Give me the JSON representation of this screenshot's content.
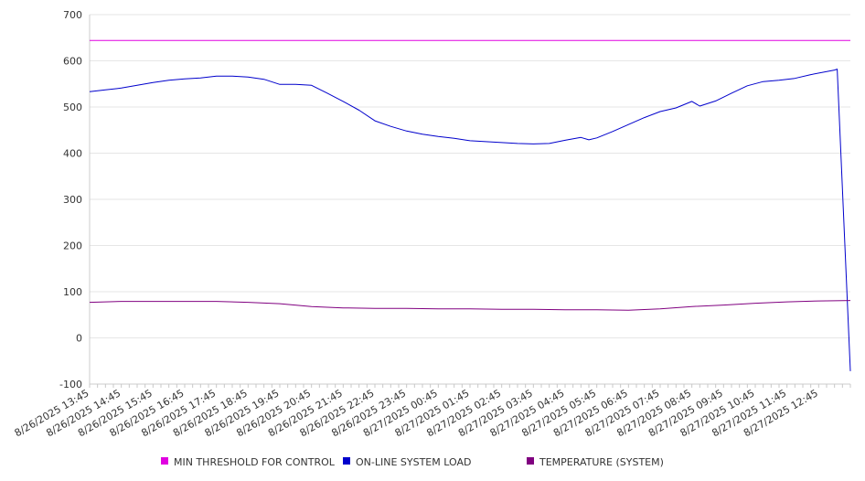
{
  "chart_data": {
    "type": "line",
    "title": "",
    "xlabel": "",
    "ylabel": "",
    "ylim": [
      -100,
      700
    ],
    "y_ticks": [
      "700",
      "600",
      "500",
      "400",
      "300",
      "200",
      "100",
      "0",
      "-100"
    ],
    "grid": "horizontal",
    "legend_position": "bottom",
    "x_tick_labels": [
      "8/26/2025 13:45",
      "8/26/2025 14:45",
      "8/26/2025 15:45",
      "8/26/2025 16:45",
      "8/26/2025 17:45",
      "8/26/2025 18:45",
      "8/26/2025 19:45",
      "8/26/2025 20:45",
      "8/26/2025 21:45",
      "8/26/2025 22:45",
      "8/26/2025 23:45",
      "8/27/2025 00:45",
      "8/27/2025 01:45",
      "8/27/2025 02:45",
      "8/27/2025 03:45",
      "8/27/2025 04:45",
      "8/27/2025 05:45",
      "8/27/2025 06:45",
      "8/27/2025 07:45",
      "8/27/2025 08:45",
      "8/27/2025 09:45",
      "8/27/2025 10:45",
      "8/27/2025 11:45",
      "8/27/2025 12:45"
    ],
    "x_range": [
      "8/26/2025 13:45",
      "8/27/2025 13:45"
    ],
    "series": [
      {
        "name": "MIN THRESHOLD FOR CONTROL",
        "color": "#e000e0",
        "points": [
          [
            "8/26/2025 13:45",
            644
          ],
          [
            "8/27/2025 13:45",
            644
          ]
        ]
      },
      {
        "name": "ON-LINE SYSTEM LOAD",
        "color": "#0000cc",
        "points": [
          [
            "8/26/2025 13:45",
            533
          ],
          [
            "8/26/2025 14:15",
            537
          ],
          [
            "8/26/2025 14:45",
            541
          ],
          [
            "8/26/2025 15:15",
            547
          ],
          [
            "8/26/2025 15:45",
            553
          ],
          [
            "8/26/2025 16:15",
            558
          ],
          [
            "8/26/2025 16:45",
            561
          ],
          [
            "8/26/2025 17:15",
            563
          ],
          [
            "8/26/2025 17:45",
            567
          ],
          [
            "8/26/2025 18:15",
            567
          ],
          [
            "8/26/2025 18:45",
            565
          ],
          [
            "8/26/2025 19:15",
            560
          ],
          [
            "8/26/2025 19:45",
            549
          ],
          [
            "8/26/2025 20:15",
            549
          ],
          [
            "8/26/2025 20:45",
            547
          ],
          [
            "8/26/2025 21:15",
            530
          ],
          [
            "8/26/2025 21:45",
            512
          ],
          [
            "8/26/2025 22:15",
            493
          ],
          [
            "8/26/2025 22:45",
            470
          ],
          [
            "8/26/2025 23:15",
            458
          ],
          [
            "8/26/2025 23:45",
            448
          ],
          [
            "8/27/2025 00:15",
            441
          ],
          [
            "8/27/2025 00:45",
            436
          ],
          [
            "8/27/2025 01:15",
            432
          ],
          [
            "8/27/2025 01:45",
            427
          ],
          [
            "8/27/2025 02:15",
            425
          ],
          [
            "8/27/2025 02:45",
            423
          ],
          [
            "8/27/2025 03:15",
            421
          ],
          [
            "8/27/2025 03:45",
            420
          ],
          [
            "8/27/2025 04:15",
            421
          ],
          [
            "8/27/2025 04:45",
            428
          ],
          [
            "8/27/2025 05:15",
            434
          ],
          [
            "8/27/2025 05:30",
            429
          ],
          [
            "8/27/2025 05:45",
            433
          ],
          [
            "8/27/2025 06:15",
            447
          ],
          [
            "8/27/2025 06:45",
            462
          ],
          [
            "8/27/2025 07:15",
            477
          ],
          [
            "8/27/2025 07:45",
            490
          ],
          [
            "8/27/2025 08:15",
            498
          ],
          [
            "8/27/2025 08:45",
            512
          ],
          [
            "8/27/2025 09:00",
            502
          ],
          [
            "8/27/2025 09:30",
            513
          ],
          [
            "8/27/2025 10:00",
            530
          ],
          [
            "8/27/2025 10:30",
            546
          ],
          [
            "8/27/2025 11:00",
            555
          ],
          [
            "8/27/2025 11:30",
            558
          ],
          [
            "8/27/2025 12:00",
            562
          ],
          [
            "8/27/2025 12:30",
            570
          ],
          [
            "8/27/2025 13:15",
            580
          ],
          [
            "8/27/2025 13:20",
            582
          ],
          [
            "8/27/2025 13:45",
            -72
          ]
        ]
      },
      {
        "name": "TEMPERATURE (SYSTEM)",
        "color": "#800080",
        "points": [
          [
            "8/26/2025 13:45",
            77
          ],
          [
            "8/26/2025 14:45",
            79
          ],
          [
            "8/26/2025 15:45",
            79
          ],
          [
            "8/26/2025 16:45",
            79
          ],
          [
            "8/26/2025 17:45",
            79
          ],
          [
            "8/26/2025 18:45",
            77
          ],
          [
            "8/26/2025 19:45",
            74
          ],
          [
            "8/26/2025 20:45",
            68
          ],
          [
            "8/26/2025 21:45",
            65
          ],
          [
            "8/26/2025 22:45",
            64
          ],
          [
            "8/26/2025 23:45",
            64
          ],
          [
            "8/27/2025 00:45",
            63
          ],
          [
            "8/27/2025 01:45",
            63
          ],
          [
            "8/27/2025 02:45",
            62
          ],
          [
            "8/27/2025 03:45",
            62
          ],
          [
            "8/27/2025 04:45",
            61
          ],
          [
            "8/27/2025 05:45",
            61
          ],
          [
            "8/27/2025 06:45",
            60
          ],
          [
            "8/27/2025 07:45",
            63
          ],
          [
            "8/27/2025 08:45",
            68
          ],
          [
            "8/27/2025 09:45",
            71
          ],
          [
            "8/27/2025 10:45",
            75
          ],
          [
            "8/27/2025 11:45",
            78
          ],
          [
            "8/27/2025 12:45",
            80
          ],
          [
            "8/27/2025 13:45",
            81
          ]
        ]
      }
    ]
  }
}
